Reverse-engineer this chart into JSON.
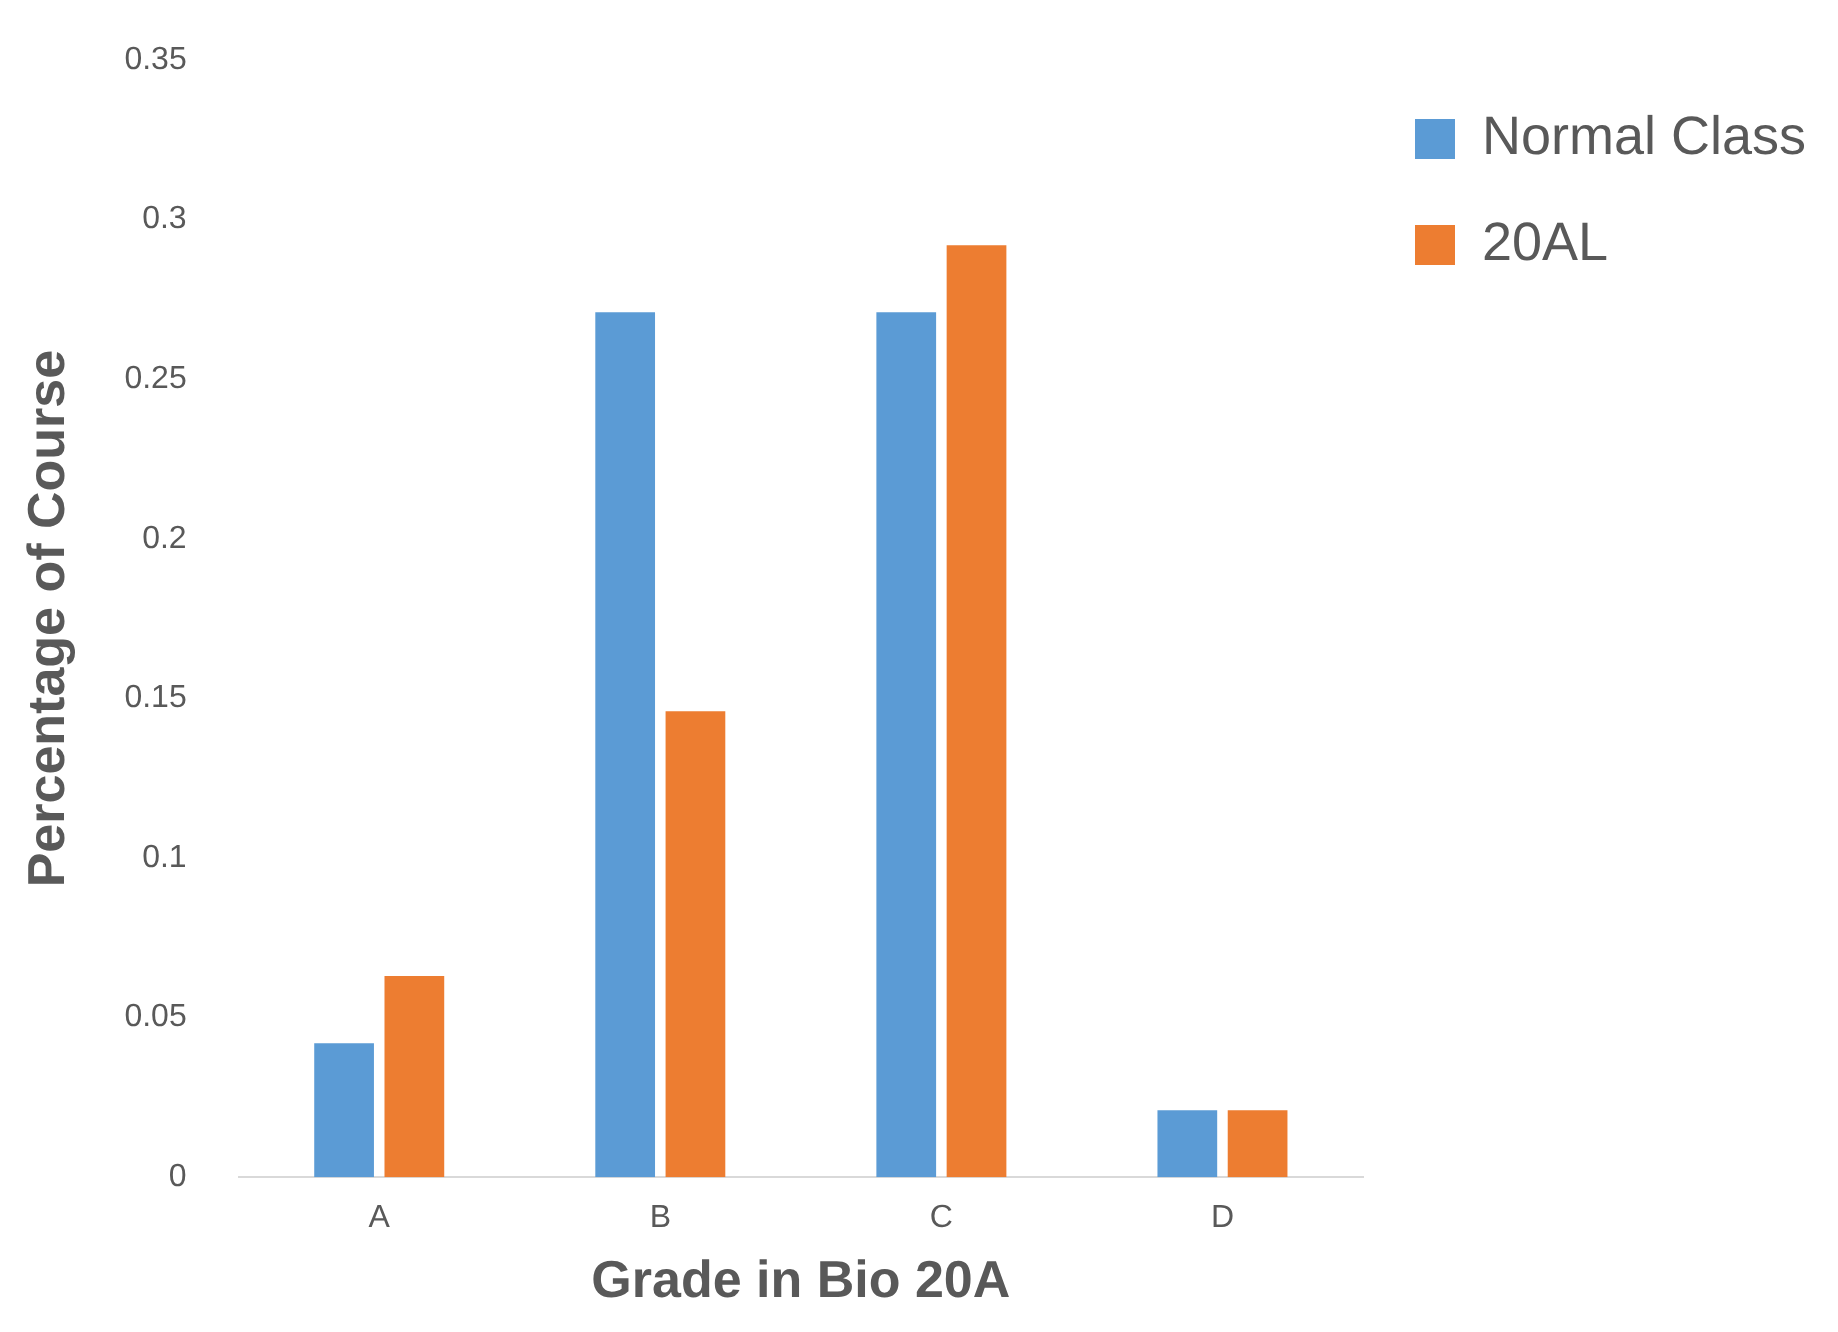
{
  "chart_data": {
    "type": "bar",
    "xlabel": "Grade in Bio 20A",
    "ylabel": "Percentage of Course",
    "categories": [
      "A",
      "B",
      "C",
      "D"
    ],
    "series": [
      {
        "name": "Normal Class",
        "color": "#5b9bd5",
        "values": [
          0.042,
          0.271,
          0.271,
          0.021
        ]
      },
      {
        "name": "20AL",
        "color": "#ed7d31",
        "values": [
          0.063,
          0.146,
          0.292,
          0.021
        ]
      }
    ],
    "ylim": [
      0,
      0.35
    ],
    "yticks": [
      0,
      0.05,
      0.1,
      0.15,
      0.2,
      0.25,
      0.3,
      0.35
    ],
    "grid": false,
    "legend": "right"
  }
}
